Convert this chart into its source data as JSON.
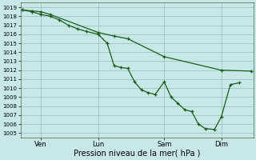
{
  "background_color": "#c8e8e8",
  "grid_color": "#99bbbb",
  "line_color": "#1a5c1a",
  "ylim": [
    1004.5,
    1019.5
  ],
  "yticks": [
    1005,
    1006,
    1007,
    1008,
    1009,
    1010,
    1011,
    1012,
    1013,
    1014,
    1015,
    1016,
    1017,
    1018,
    1019
  ],
  "xlabel": "Pression niveau de la mer( hPa )",
  "xtick_labels": [
    "Ven",
    "Lun",
    "Sam",
    "Dim"
  ],
  "xtick_positions": [
    0.08,
    0.33,
    0.62,
    0.87
  ],
  "line1_x": [
    0.0,
    0.04,
    0.08,
    0.12,
    0.33,
    0.4,
    0.46,
    0.62,
    0.87,
    1.0
  ],
  "line1_y": [
    1018.7,
    1018.6,
    1018.5,
    1018.2,
    1016.2,
    1015.8,
    1015.5,
    1013.5,
    1012.0,
    1011.9
  ],
  "line2_x": [
    0.0,
    0.04,
    0.08,
    0.12,
    0.16,
    0.2,
    0.24,
    0.28,
    0.33,
    0.37,
    0.4,
    0.43,
    0.46,
    0.49,
    0.52,
    0.55,
    0.58,
    0.62,
    0.65,
    0.68,
    0.71,
    0.74,
    0.77,
    0.8,
    0.84,
    0.87,
    0.91,
    0.95
  ],
  "line2_y": [
    1018.7,
    1018.5,
    1018.2,
    1018.0,
    1017.6,
    1017.0,
    1016.6,
    1016.3,
    1016.0,
    1015.0,
    1012.5,
    1012.3,
    1012.2,
    1010.7,
    1009.8,
    1009.5,
    1009.3,
    1010.7,
    1009.0,
    1008.3,
    1007.6,
    1007.4,
    1006.0,
    1005.5,
    1005.4,
    1006.8,
    1010.4,
    1010.6
  ]
}
